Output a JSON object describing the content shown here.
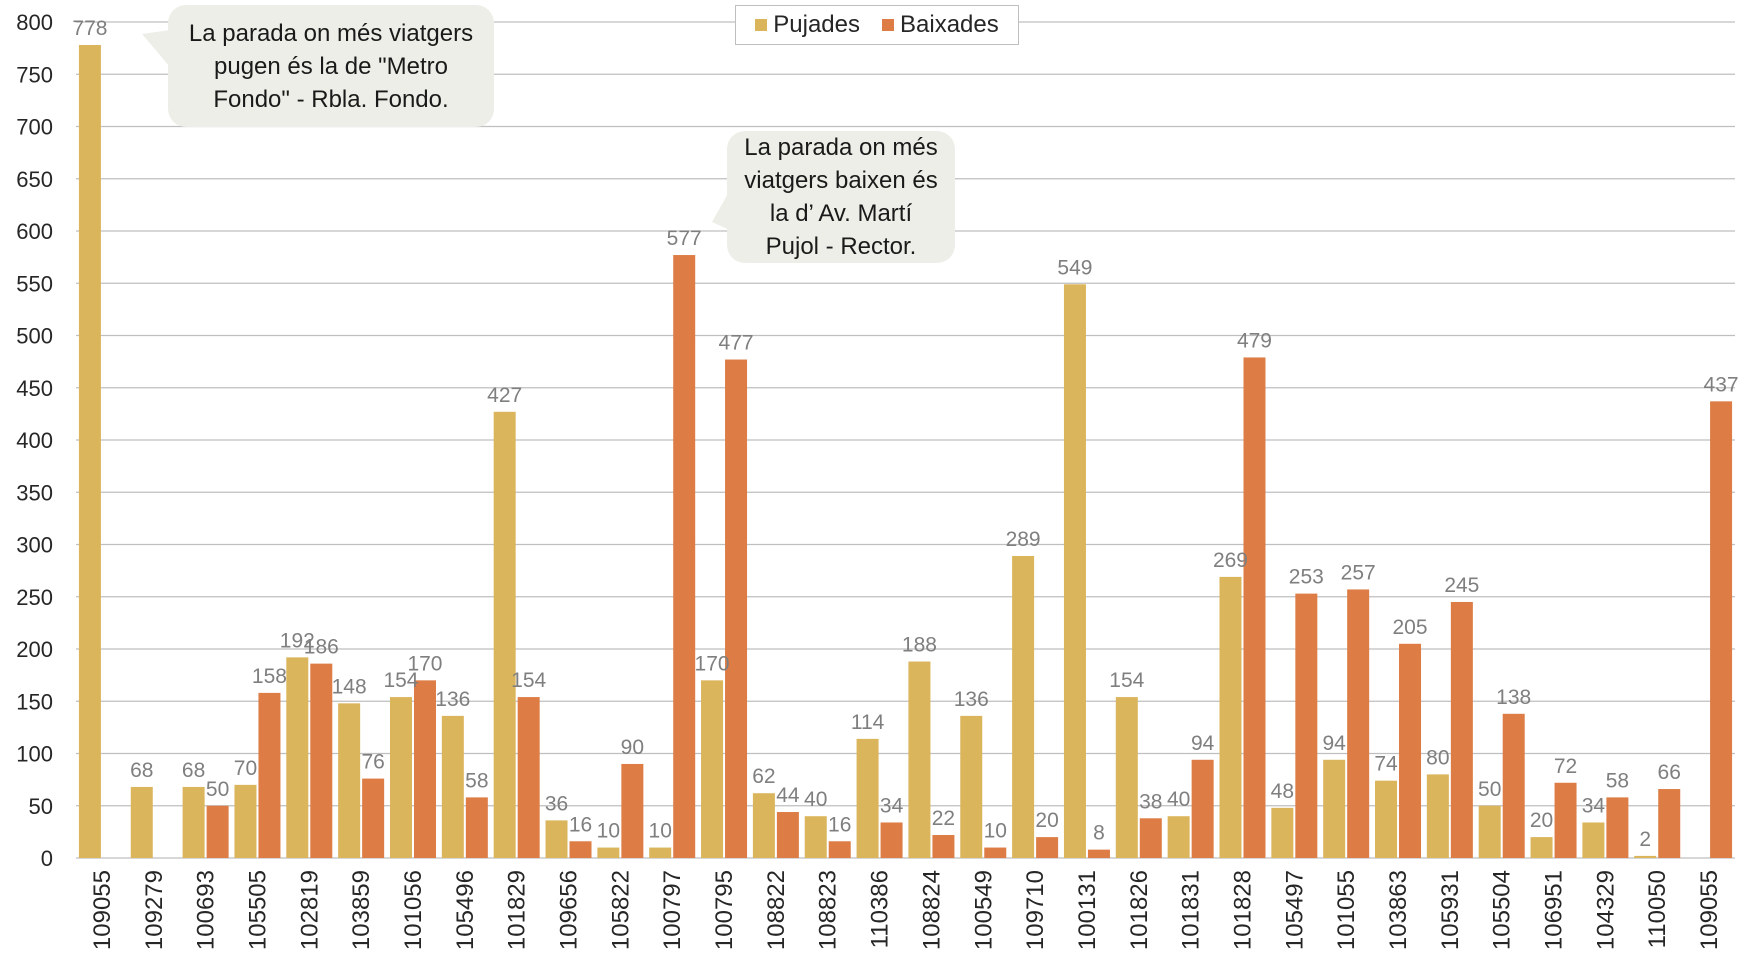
{
  "chart_data": {
    "type": "bar",
    "ylim": [
      0,
      800
    ],
    "yticks": [
      0,
      50,
      100,
      150,
      200,
      250,
      300,
      350,
      400,
      450,
      500,
      550,
      600,
      650,
      700,
      750,
      800
    ],
    "grid": true,
    "legend_position": "top-center",
    "categories": [
      "109055",
      "109279",
      "100693",
      "105505",
      "102819",
      "103859",
      "101056",
      "105496",
      "101829",
      "109656",
      "105822",
      "100797",
      "100795",
      "108822",
      "108823",
      "110386",
      "108824",
      "100549",
      "109710",
      "100131",
      "101826",
      "101831",
      "101828",
      "105497",
      "101055",
      "103863",
      "105931",
      "105504",
      "106951",
      "104329",
      "110050",
      "109055"
    ],
    "series": [
      {
        "name": "Pujades",
        "color": "#dbb55c",
        "values": [
          778,
          68,
          68,
          70,
          192,
          148,
          154,
          136,
          427,
          36,
          10,
          10,
          170,
          62,
          40,
          114,
          188,
          136,
          289,
          549,
          154,
          40,
          269,
          48,
          94,
          74,
          80,
          50,
          20,
          34,
          2,
          null
        ],
        "labels": [
          "778",
          "68",
          "68",
          "70",
          "192",
          "148",
          "154",
          "136",
          "427",
          "36",
          "10",
          "10",
          "170",
          "62",
          "40",
          "114",
          "188",
          "136",
          "289",
          "549",
          "154",
          "40",
          "269",
          "48",
          "94",
          "74",
          "80",
          "50",
          "20",
          "34",
          "2",
          ""
        ]
      },
      {
        "name": "Baixades",
        "color": "#dd7d45",
        "values": [
          null,
          null,
          50,
          158,
          186,
          76,
          170,
          58,
          154,
          16,
          90,
          577,
          477,
          44,
          16,
          34,
          22,
          10,
          20,
          8,
          38,
          94,
          479,
          253,
          257,
          205,
          245,
          138,
          72,
          58,
          66,
          437
        ],
        "labels": [
          "",
          "",
          "50",
          "158",
          "186",
          "76",
          "170",
          "58",
          "154",
          "16",
          "90",
          "577",
          "477",
          "44",
          "16",
          "34",
          "22",
          "10",
          "20",
          "8",
          "38",
          "94",
          "479",
          "253",
          "257",
          "205",
          "245",
          "138",
          "72",
          "58",
          "66",
          "437"
        ]
      }
    ],
    "annotations": [
      "La parada on més viatgers pugen és la de \"Metro Fondo\" - Rbla. Fondo.",
      "La parada on més viatgers baixen és la d’ Av. Martí Pujol - Rector."
    ]
  },
  "legend": {
    "pujades": "Pujades",
    "baixades": "Baixades"
  },
  "colors": {
    "grid": "#bfbfbf",
    "axis_text": "#262626",
    "label_text": "#7f7f7f",
    "callout_bg": "#eeeee8"
  }
}
